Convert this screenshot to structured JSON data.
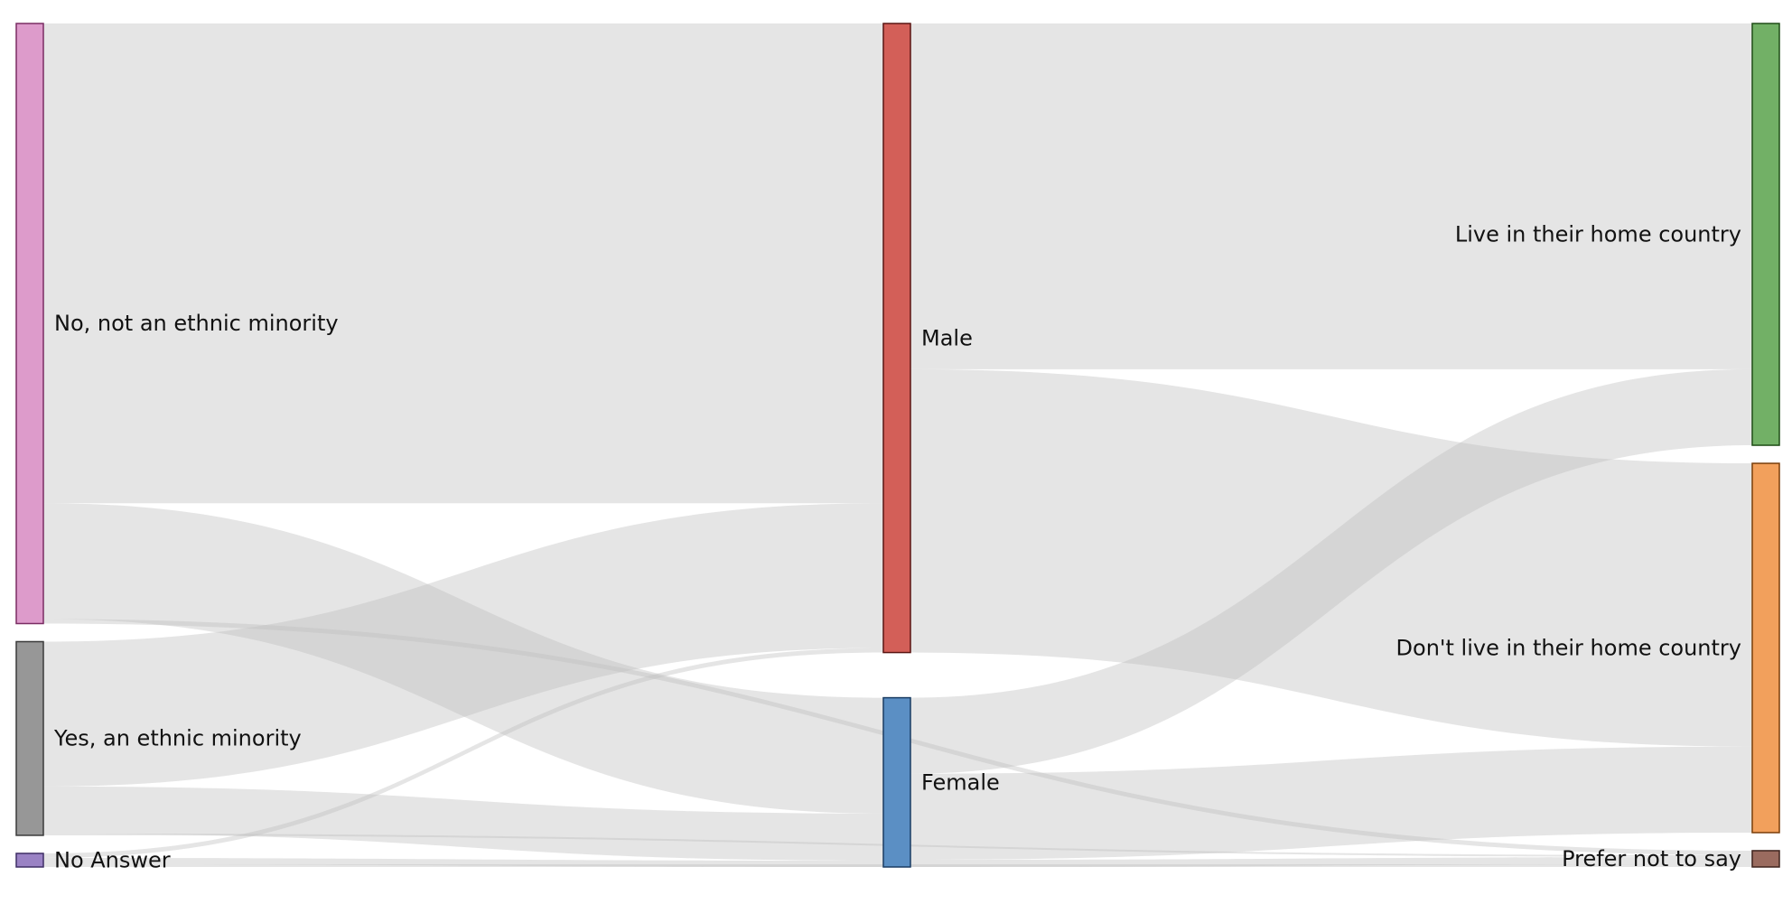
{
  "chart_data": {
    "type": "sankey",
    "nodes": [
      {
        "id": "no_minority",
        "label": "No, not an ethnic minority",
        "column": 0,
        "color": "#dd9bcb",
        "stroke": "#7a2d63"
      },
      {
        "id": "yes_minority",
        "label": "Yes, an ethnic minority",
        "column": 0,
        "color": "#979797",
        "stroke": "#3a3a3a"
      },
      {
        "id": "no_answer",
        "label": "No Answer",
        "column": 0,
        "color": "#9a82c4",
        "stroke": "#3f2e66"
      },
      {
        "id": "male",
        "label": "Male",
        "column": 1,
        "color": "#d35f58",
        "stroke": "#5a1512"
      },
      {
        "id": "female",
        "label": "Female",
        "column": 1,
        "color": "#5b8fc4",
        "stroke": "#1a3c63"
      },
      {
        "id": "live_home",
        "label": "Live in their home country",
        "column": 2,
        "color": "#72b066",
        "stroke": "#1f4d16"
      },
      {
        "id": "not_live_home",
        "label": "Don't live in their home country",
        "column": 2,
        "color": "#f2a05c",
        "stroke": "#7a3e0a"
      },
      {
        "id": "prefer_not",
        "label": "Prefer not to say",
        "column": 2,
        "color": "#9a6b5f",
        "stroke": "#3e231d"
      }
    ],
    "links": [
      {
        "source": "no_minority",
        "target": "male",
        "value": 530
      },
      {
        "source": "no_minority",
        "target": "female",
        "value": 128
      },
      {
        "source": "no_minority",
        "target": "prefer_not",
        "value": 5
      },
      {
        "source": "yes_minority",
        "target": "male",
        "value": 160
      },
      {
        "source": "yes_minority",
        "target": "female",
        "value": 52
      },
      {
        "source": "yes_minority",
        "target": "prefer_not",
        "value": 2
      },
      {
        "source": "no_answer",
        "target": "female",
        "value": 7
      },
      {
        "source": "no_answer",
        "target": "male",
        "value": 5
      },
      {
        "source": "no_answer",
        "target": "prefer_not",
        "value": 3
      },
      {
        "source": "male",
        "target": "live_home",
        "value": 382
      },
      {
        "source": "male",
        "target": "not_live_home",
        "value": 313
      },
      {
        "source": "female",
        "target": "live_home",
        "value": 84
      },
      {
        "source": "female",
        "target": "not_live_home",
        "value": 95
      },
      {
        "source": "female",
        "target": "prefer_not",
        "value": 8
      }
    ]
  }
}
